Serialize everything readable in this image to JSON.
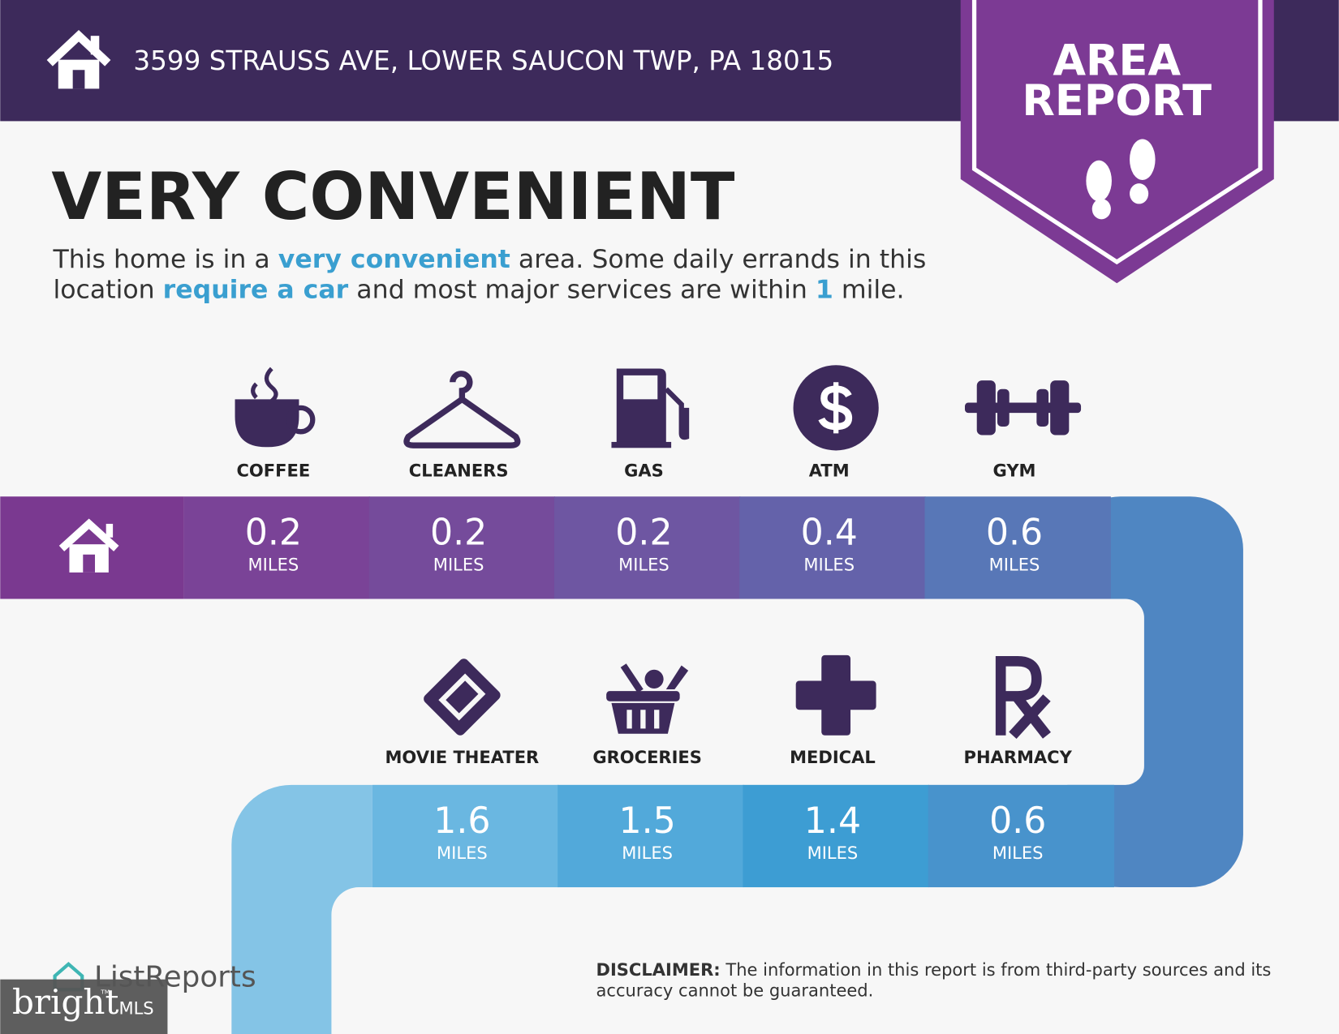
{
  "header": {
    "address": "3599 STRAUSS AVE, LOWER SAUCON TWP, PA 18015"
  },
  "badge": {
    "line1": "AREA",
    "line2": "REPORT"
  },
  "headline": "VERY CONVENIENT",
  "description": {
    "lines": [
      [
        {
          "text": "This home is in a ",
          "highlight": false
        },
        {
          "text": "very convenient",
          "highlight": true
        },
        {
          "text": " area. Some daily errands in this",
          "highlight": false
        }
      ],
      [
        {
          "text": "location ",
          "highlight": false
        },
        {
          "text": "require a car",
          "highlight": true
        },
        {
          "text": " and most major services are within ",
          "highlight": false
        },
        {
          "text": "1",
          "highlight": true
        },
        {
          "text": " mile.",
          "highlight": false
        }
      ]
    ]
  },
  "top_row": [
    {
      "label": "COFFEE",
      "distance": 0.2,
      "unit": "MILES"
    },
    {
      "label": "CLEANERS",
      "distance": 0.2,
      "unit": "MILES"
    },
    {
      "label": "GAS",
      "distance": 0.2,
      "unit": "MILES"
    },
    {
      "label": "ATM",
      "distance": 0.4,
      "unit": "MILES"
    },
    {
      "label": "GYM",
      "distance": 0.6,
      "unit": "MILES"
    }
  ],
  "bottom_row": [
    {
      "label": "MOVIE THEATER",
      "distance": 1.6,
      "unit": "MILES"
    },
    {
      "label": "GROCERIES",
      "distance": 1.5,
      "unit": "MILES"
    },
    {
      "label": "MEDICAL",
      "distance": 1.4,
      "unit": "MILES"
    },
    {
      "label": "PHARMACY",
      "distance": 0.6,
      "unit": "MILES"
    }
  ],
  "footer": {
    "logo": "ListReports",
    "disclaimer": {
      "label": "DISCLAIMER:",
      "lines": [
        " The information in this report is from third-party sources and its",
        "accuracy cannot be guaranteed."
      ]
    },
    "watermark": {
      "brand": "bright",
      "tm": "TM",
      "suffix": "MLS"
    }
  }
}
